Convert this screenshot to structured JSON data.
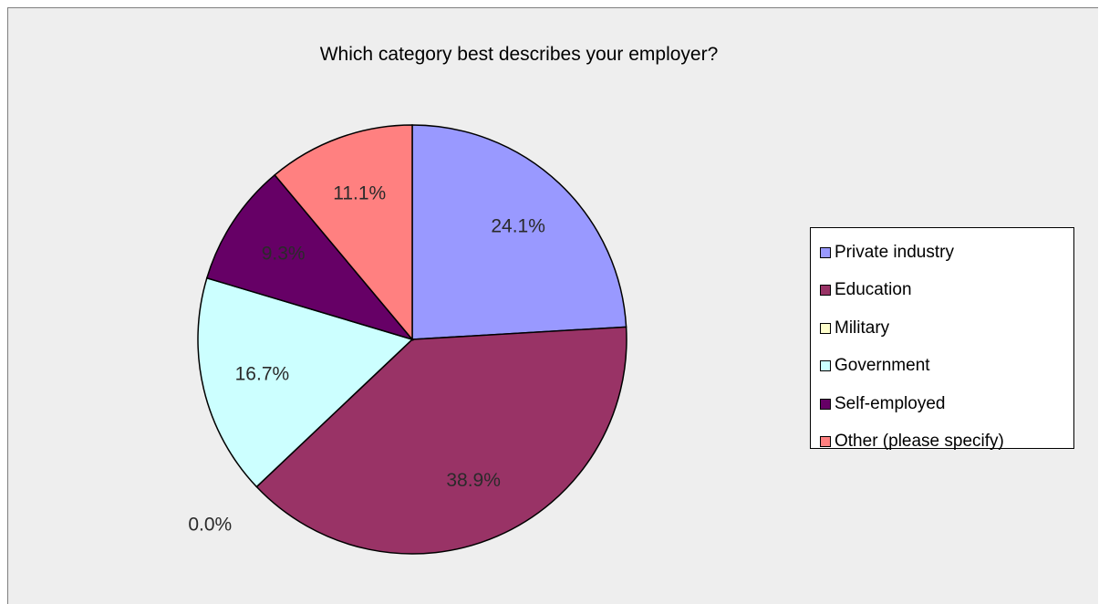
{
  "chart_data": {
    "type": "pie",
    "title": "Which category best describes your employer?",
    "slices": [
      {
        "label": "Private industry",
        "value": 24.1,
        "display": "24.1%",
        "color": "#9999ff"
      },
      {
        "label": "Education",
        "value": 38.9,
        "display": "38.9%",
        "color": "#993366"
      },
      {
        "label": "Military",
        "value": 0.0,
        "display": "0.0%",
        "color": "#ffffcc"
      },
      {
        "label": "Government",
        "value": 16.7,
        "display": "16.7%",
        "color": "#ccffff"
      },
      {
        "label": "Self-employed",
        "value": 9.3,
        "display": "9.3%",
        "color": "#660066"
      },
      {
        "label": "Other (please specify)",
        "value": 11.1,
        "display": "11.1%",
        "color": "#ff8080"
      }
    ],
    "legend_position": "right",
    "start_angle": "top, clockwise"
  }
}
